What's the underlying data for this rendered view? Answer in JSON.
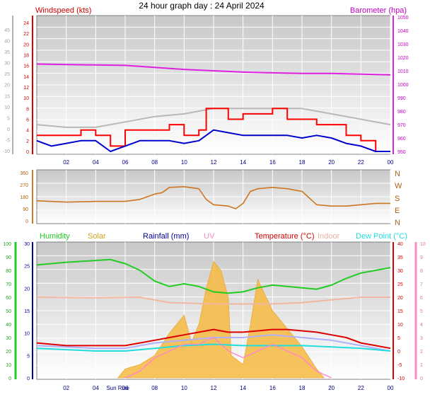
{
  "title": "24 hour graph day : 24 April 2024",
  "colors": {
    "wind_avg": "#0000cc",
    "wind_gust": "#ff0000",
    "barometer": "#e020e0",
    "direction": "#cc7722",
    "humidity": "#22cc22",
    "solar": "#f5b840",
    "rainfall": "#000099",
    "uv": "#ff88cc",
    "temperature": "#dd0000",
    "indoor": "#f0b8a0",
    "dewpoint": "#22dddd",
    "apparent": "#b0b0ff",
    "wind_grey": "#b8b8b8"
  },
  "chart_data": [
    {
      "id": "wind_baro",
      "type": "line",
      "legend": [
        "Windspeed (kts)",
        "Barometer (hpa)"
      ],
      "x_ticks": [
        "02",
        "04",
        "06",
        "08",
        "10",
        "12",
        "14",
        "16",
        "18",
        "20",
        "22",
        "00"
      ],
      "y_outer_left": {
        "label": "",
        "ticks": [
          -10,
          -5,
          0,
          5,
          10,
          15,
          20,
          25,
          30,
          35,
          40,
          45
        ]
      },
      "y_left": {
        "ticks": [
          0,
          2,
          4,
          6,
          8,
          10,
          12,
          14,
          16,
          18,
          20,
          22,
          24
        ]
      },
      "y_right": {
        "ticks": [
          950,
          960,
          970,
          980,
          990,
          1000,
          1010,
          1020,
          1030,
          1040,
          1050
        ]
      },
      "barometer": [
        [
          0,
          1015
        ],
        [
          3,
          1014.5
        ],
        [
          6,
          1014
        ],
        [
          8,
          1012.5
        ],
        [
          10,
          1011
        ],
        [
          12,
          1010
        ],
        [
          14,
          1009
        ],
        [
          16,
          1008.5
        ],
        [
          18,
          1008
        ],
        [
          20,
          1008
        ],
        [
          22,
          1007.5
        ],
        [
          24,
          1007
        ]
      ],
      "wind_avg": [
        [
          0,
          2
        ],
        [
          1,
          1
        ],
        [
          2,
          1.5
        ],
        [
          3,
          2
        ],
        [
          4,
          2
        ],
        [
          5,
          0
        ],
        [
          5.5,
          0.5
        ],
        [
          6,
          1
        ],
        [
          7,
          2
        ],
        [
          8,
          2
        ],
        [
          9,
          2
        ],
        [
          10,
          1.5
        ],
        [
          11,
          2
        ],
        [
          11.5,
          3
        ],
        [
          12,
          4
        ],
        [
          13,
          3.5
        ],
        [
          14,
          3
        ],
        [
          15,
          3
        ],
        [
          16,
          3
        ],
        [
          17,
          3
        ],
        [
          18,
          2.5
        ],
        [
          19,
          3
        ],
        [
          20,
          2.5
        ],
        [
          21,
          1.5
        ],
        [
          22,
          1
        ],
        [
          23,
          0
        ],
        [
          24,
          0
        ]
      ],
      "wind_gust": [
        [
          0,
          3
        ],
        [
          1,
          3
        ],
        [
          2,
          3
        ],
        [
          3,
          4
        ],
        [
          4,
          3
        ],
        [
          5,
          1
        ],
        [
          5.5,
          1
        ],
        [
          6,
          4
        ],
        [
          7,
          4
        ],
        [
          8,
          4
        ],
        [
          9,
          5
        ],
        [
          10,
          3
        ],
        [
          11,
          4
        ],
        [
          11.5,
          8
        ],
        [
          12,
          8
        ],
        [
          13,
          6
        ],
        [
          14,
          7
        ],
        [
          15,
          7
        ],
        [
          16,
          8
        ],
        [
          17,
          6
        ],
        [
          18,
          6
        ],
        [
          19,
          5
        ],
        [
          20,
          5
        ],
        [
          21,
          3
        ],
        [
          22,
          2
        ],
        [
          23,
          0
        ],
        [
          24,
          0
        ]
      ],
      "wind_grey": [
        [
          0,
          5
        ],
        [
          2,
          4.5
        ],
        [
          4,
          4.5
        ],
        [
          6,
          5.5
        ],
        [
          8,
          6.5
        ],
        [
          10,
          7
        ],
        [
          12,
          8
        ],
        [
          14,
          8
        ],
        [
          16,
          8
        ],
        [
          18,
          8
        ],
        [
          20,
          7
        ],
        [
          22,
          6
        ],
        [
          24,
          5
        ]
      ]
    },
    {
      "id": "direction",
      "type": "line",
      "y_left": {
        "ticks": [
          0,
          90,
          180,
          270,
          360
        ]
      },
      "y_right": {
        "ticks": [
          "N",
          "W",
          "S",
          "E",
          "N"
        ]
      },
      "direction": [
        [
          0,
          150
        ],
        [
          2,
          140
        ],
        [
          4,
          145
        ],
        [
          6,
          145
        ],
        [
          7,
          160
        ],
        [
          8,
          200
        ],
        [
          8.5,
          210
        ],
        [
          9,
          250
        ],
        [
          10,
          255
        ],
        [
          11,
          240
        ],
        [
          11.5,
          160
        ],
        [
          12,
          120
        ],
        [
          13,
          110
        ],
        [
          13.5,
          90
        ],
        [
          14,
          130
        ],
        [
          14.5,
          220
        ],
        [
          15,
          240
        ],
        [
          16,
          250
        ],
        [
          17,
          240
        ],
        [
          18,
          220
        ],
        [
          19,
          120
        ],
        [
          20,
          110
        ],
        [
          21,
          110
        ],
        [
          22,
          120
        ],
        [
          23,
          130
        ],
        [
          24,
          130
        ]
      ]
    },
    {
      "id": "temp_etc",
      "type": "line",
      "legend": [
        "Humidity",
        "Solar",
        "Rainfall (mm)",
        "UV",
        "Temperature (°C)",
        "Indoor",
        "Dew Point (°C)"
      ],
      "sunrise_label": "Sun Rise",
      "x_ticks": [
        "02",
        "04",
        "06",
        "08",
        "10",
        "12",
        "14",
        "16",
        "18",
        "20",
        "22",
        "00"
      ],
      "y_humidity": {
        "ticks": [
          0,
          10,
          20,
          30,
          40,
          50,
          60,
          70,
          80,
          90,
          100
        ]
      },
      "y_rain": {
        "ticks": [
          0,
          5,
          10,
          15,
          20,
          25,
          30
        ]
      },
      "y_temp": {
        "ticks": [
          -10,
          -5,
          0,
          5,
          10,
          15,
          20,
          25,
          30,
          35,
          40
        ]
      },
      "y_uv": {
        "ticks": [
          0,
          1,
          2,
          3,
          4,
          5,
          6,
          7,
          8,
          9,
          10
        ]
      },
      "humidity": [
        [
          0,
          84
        ],
        [
          2,
          86
        ],
        [
          3.5,
          87
        ],
        [
          5,
          88
        ],
        [
          6,
          85
        ],
        [
          7,
          80
        ],
        [
          8,
          72
        ],
        [
          9,
          68
        ],
        [
          10,
          70
        ],
        [
          11,
          68
        ],
        [
          12,
          64
        ],
        [
          13,
          63
        ],
        [
          14,
          64
        ],
        [
          15,
          67
        ],
        [
          16,
          69
        ],
        [
          17,
          68
        ],
        [
          18,
          67
        ],
        [
          19,
          66
        ],
        [
          20,
          69
        ],
        [
          21,
          74
        ],
        [
          22,
          78
        ],
        [
          23,
          80
        ],
        [
          24,
          82
        ]
      ],
      "temperature": [
        [
          0,
          3
        ],
        [
          2,
          2
        ],
        [
          4,
          2
        ],
        [
          6,
          2
        ],
        [
          7,
          3
        ],
        [
          8,
          4
        ],
        [
          9,
          5
        ],
        [
          10,
          6
        ],
        [
          11,
          7
        ],
        [
          12,
          8
        ],
        [
          13,
          7
        ],
        [
          14,
          7
        ],
        [
          15,
          7.5
        ],
        [
          16,
          8
        ],
        [
          17,
          8
        ],
        [
          18,
          7.5
        ],
        [
          19,
          7
        ],
        [
          20,
          6
        ],
        [
          21,
          5
        ],
        [
          22,
          3
        ],
        [
          23,
          2
        ],
        [
          24,
          1
        ]
      ],
      "dewpoint": [
        [
          0,
          1
        ],
        [
          4,
          0
        ],
        [
          6,
          0
        ],
        [
          8,
          1
        ],
        [
          10,
          2
        ],
        [
          12,
          2.5
        ],
        [
          14,
          2
        ],
        [
          16,
          2
        ],
        [
          18,
          2
        ],
        [
          20,
          1.5
        ],
        [
          22,
          1
        ],
        [
          24,
          0
        ]
      ],
      "indoor": [
        [
          0,
          20
        ],
        [
          4,
          19.8
        ],
        [
          7,
          20
        ],
        [
          8,
          19
        ],
        [
          9,
          18
        ],
        [
          12,
          17.5
        ],
        [
          14,
          17.5
        ],
        [
          16,
          17.5
        ],
        [
          18,
          18
        ],
        [
          20,
          19
        ],
        [
          22,
          20
        ],
        [
          24,
          20
        ]
      ],
      "apparent": [
        [
          0,
          2
        ],
        [
          4,
          1
        ],
        [
          6,
          1
        ],
        [
          8,
          3
        ],
        [
          10,
          4
        ],
        [
          12,
          5
        ],
        [
          14,
          5
        ],
        [
          16,
          6
        ],
        [
          18,
          5
        ],
        [
          20,
          4
        ],
        [
          22,
          2
        ],
        [
          24,
          0
        ]
      ],
      "uv": [
        [
          6,
          0
        ],
        [
          7,
          0.5
        ],
        [
          8,
          1.5
        ],
        [
          10,
          2.5
        ],
        [
          11,
          2.5
        ],
        [
          12,
          3
        ],
        [
          13,
          2
        ],
        [
          14,
          1.5
        ],
        [
          15,
          2
        ],
        [
          16,
          2.5
        ],
        [
          18,
          1.5
        ],
        [
          19,
          0.5
        ],
        [
          20,
          0
        ]
      ],
      "solar": [
        [
          5.5,
          0
        ],
        [
          6,
          2
        ],
        [
          7,
          3
        ],
        [
          8,
          5
        ],
        [
          9,
          10
        ],
        [
          10,
          14
        ],
        [
          10.5,
          8
        ],
        [
          11,
          12
        ],
        [
          11.5,
          20
        ],
        [
          12,
          26
        ],
        [
          12.5,
          24
        ],
        [
          13,
          18
        ],
        [
          13.2,
          5
        ],
        [
          14,
          3
        ],
        [
          14.5,
          12
        ],
        [
          15,
          22
        ],
        [
          16,
          15
        ],
        [
          17,
          11
        ],
        [
          18,
          7
        ],
        [
          19,
          2
        ],
        [
          19.5,
          0
        ]
      ]
    }
  ]
}
